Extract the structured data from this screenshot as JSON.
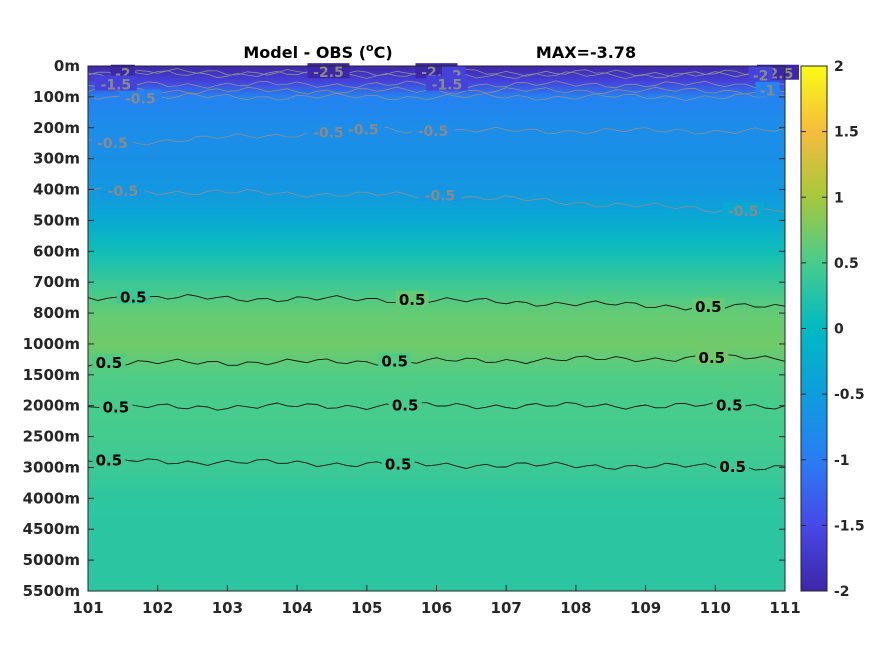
{
  "chart_data": {
    "type": "heatmap",
    "title": "Model - OBS (°C)",
    "title_main": "Model - OBS (",
    "title_degree": "o",
    "title_unit": "C)",
    "subtitle": "MAX=-3.78",
    "x_ticks": [
      "101",
      "102",
      "103",
      "104",
      "105",
      "106",
      "107",
      "108",
      "109",
      "110",
      "111"
    ],
    "xlim": [
      101,
      111
    ],
    "y_ticks": [
      "0m",
      "100m",
      "200m",
      "300m",
      "400m",
      "500m",
      "600m",
      "700m",
      "800m",
      "1000m",
      "1500m",
      "2000m",
      "2500m",
      "3000m",
      "4000m",
      "4500m",
      "5000m",
      "5500m"
    ],
    "colorbar": {
      "ticks": [
        "2",
        "1.5",
        "1",
        "0.5",
        "0",
        "-0.5",
        "-1",
        "-1.5",
        "-2"
      ],
      "range": [
        -2,
        2
      ],
      "colormap": "parula"
    },
    "depth_profile": [
      {
        "level": 0,
        "value": -2.6
      },
      {
        "level": 0.5,
        "value": -1.6
      },
      {
        "level": 1,
        "value": -0.9
      },
      {
        "level": 2,
        "value": -0.75
      },
      {
        "level": 3,
        "value": -0.7
      },
      {
        "level": 4,
        "value": -0.6
      },
      {
        "level": 5,
        "value": -0.3
      },
      {
        "level": 6,
        "value": 0.1
      },
      {
        "level": 7,
        "value": 0.4
      },
      {
        "level": 8,
        "value": 0.65
      },
      {
        "level": 9,
        "value": 0.72
      },
      {
        "level": 10,
        "value": 0.55
      },
      {
        "level": 11,
        "value": 0.5
      },
      {
        "level": 12,
        "value": 0.48
      },
      {
        "level": 13,
        "value": 0.42
      },
      {
        "level": 14,
        "value": 0.32
      },
      {
        "level": 15,
        "value": 0.3
      },
      {
        "level": 16,
        "value": 0.3
      },
      {
        "level": 17,
        "value": 0.3
      }
    ],
    "contours": [
      {
        "value": "0.5",
        "level": 7.5,
        "style": "dark",
        "labels": [
          {
            "x": 101.65,
            "lv": 7.5
          },
          {
            "x": 105.65,
            "lv": 7.57
          },
          {
            "x": 109.9,
            "lv": 7.8
          }
        ]
      },
      {
        "value": "0.5",
        "level": 9.6,
        "style": "dark",
        "labels": [
          {
            "x": 101.3,
            "lv": 9.62
          },
          {
            "x": 105.4,
            "lv": 9.57
          },
          {
            "x": 109.95,
            "lv": 9.45
          }
        ]
      },
      {
        "value": "0.5",
        "level": 11.05,
        "style": "dark",
        "labels": [
          {
            "x": 101.4,
            "lv": 11.05
          },
          {
            "x": 105.55,
            "lv": 11.0
          },
          {
            "x": 110.2,
            "lv": 11.0
          }
        ]
      },
      {
        "value": "0.5",
        "level": 12.78,
        "style": "dark",
        "labels": [
          {
            "x": 101.3,
            "lv": 12.78
          },
          {
            "x": 105.45,
            "lv": 12.9
          },
          {
            "x": 110.25,
            "lv": 12.98
          }
        ]
      },
      {
        "value": "-0.5",
        "level": 4.05,
        "style": "grey",
        "labels": [
          {
            "x": 101.5,
            "lv": 4.05
          },
          {
            "x": 106.05,
            "lv": 4.2
          },
          {
            "x": 110.4,
            "lv": 4.7
          }
        ]
      },
      {
        "value": "-0.5",
        "level": 2.4,
        "style": "grey",
        "labels": [
          {
            "x": 101.35,
            "lv": 2.5
          },
          {
            "x": 104.45,
            "lv": 2.15
          },
          {
            "x": 104.95,
            "lv": 2.05
          },
          {
            "x": 105.95,
            "lv": 2.1
          }
        ]
      },
      {
        "value": "-0.5",
        "level": 1.0,
        "style": "grey",
        "labels": [
          {
            "x": 101.75,
            "lv": 1.05
          }
        ]
      },
      {
        "value": "-2.5",
        "level": 0.2,
        "style": "grey",
        "labels": [
          {
            "x": 104.45,
            "lv": 0.2
          },
          {
            "x": 106.0,
            "lv": 0.2
          },
          {
            "x": 110.9,
            "lv": 0.25
          }
        ]
      },
      {
        "value": "-2",
        "level": 0.3,
        "style": "grey",
        "labels": [
          {
            "x": 101.5,
            "lv": 0.25
          },
          {
            "x": 106.25,
            "lv": 0.3
          },
          {
            "x": 110.65,
            "lv": 0.3
          }
        ]
      },
      {
        "value": "-1.5",
        "level": 0.55,
        "style": "grey",
        "labels": [
          {
            "x": 101.4,
            "lv": 0.6
          },
          {
            "x": 106.15,
            "lv": 0.6
          }
        ]
      },
      {
        "value": "-1",
        "level": 0.8,
        "style": "grey",
        "labels": [
          {
            "x": 110.75,
            "lv": 0.8
          }
        ]
      }
    ]
  }
}
